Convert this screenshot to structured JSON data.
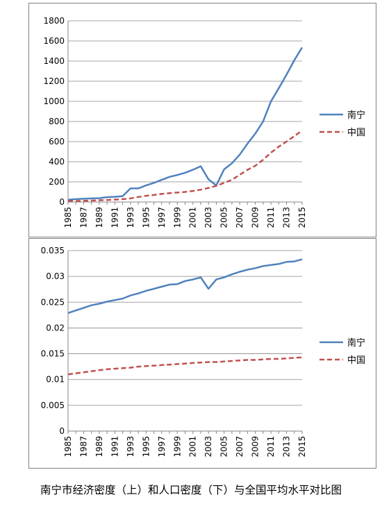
{
  "chart_data": [
    {
      "type": "line",
      "x": [
        1985,
        1986,
        1987,
        1988,
        1989,
        1990,
        1991,
        1992,
        1993,
        1994,
        1995,
        1996,
        1997,
        1998,
        1999,
        2000,
        2001,
        2002,
        2003,
        2004,
        2005,
        2006,
        2007,
        2008,
        2009,
        2010,
        2011,
        2012,
        2013,
        2014,
        2015
      ],
      "x_tick_labels": [
        "1985",
        "1987",
        "1989",
        "1991",
        "1993",
        "1995",
        "1997",
        "1999",
        "2001",
        "2003",
        "2005",
        "2007",
        "2009",
        "2011",
        "2013",
        "2015"
      ],
      "y_tick_labels": [
        "0",
        "200",
        "400",
        "600",
        "800",
        "1000",
        "1200",
        "1400",
        "1600",
        "1800"
      ],
      "ylim": [
        0,
        1800
      ],
      "grid": "horizontal",
      "legend_position": "right",
      "series": [
        {
          "name": "南宁",
          "color": "#4f81bd",
          "style": "solid",
          "values": [
            22,
            28,
            33,
            35,
            38,
            48,
            52,
            58,
            135,
            135,
            165,
            190,
            220,
            250,
            268,
            290,
            320,
            355,
            225,
            165,
            325,
            385,
            470,
            580,
            680,
            800,
            1000,
            1130,
            1265,
            1410,
            1535
          ]
        },
        {
          "name": "中国",
          "color": "#c0504d",
          "style": "dashed",
          "values": [
            8,
            10,
            12,
            14,
            17,
            20,
            24,
            28,
            36,
            50,
            62,
            70,
            80,
            88,
            94,
            100,
            110,
            122,
            140,
            160,
            190,
            220,
            270,
            320,
            360,
            420,
            490,
            550,
            600,
            655,
            710
          ]
        }
      ]
    },
    {
      "type": "line",
      "x": [
        1985,
        1986,
        1987,
        1988,
        1989,
        1990,
        1991,
        1992,
        1993,
        1994,
        1995,
        1996,
        1997,
        1998,
        1999,
        2000,
        2001,
        2002,
        2003,
        2004,
        2005,
        2006,
        2007,
        2008,
        2009,
        2010,
        2011,
        2012,
        2013,
        2014,
        2015
      ],
      "x_tick_labels": [
        "1985",
        "1987",
        "1989",
        "1991",
        "1993",
        "1995",
        "1997",
        "1999",
        "2001",
        "2003",
        "2005",
        "2007",
        "2009",
        "2011",
        "2013",
        "2015"
      ],
      "y_tick_labels": [
        "0",
        "0.005",
        "0.01",
        "0.015",
        "0.02",
        "0.025",
        "0.03",
        "0.035"
      ],
      "ylim": [
        0,
        0.035
      ],
      "grid": "horizontal",
      "legend_position": "right",
      "series": [
        {
          "name": "南宁",
          "color": "#4f81bd",
          "style": "solid",
          "values": [
            0.0229,
            0.0234,
            0.0239,
            0.0244,
            0.0247,
            0.0251,
            0.0254,
            0.0257,
            0.0263,
            0.0267,
            0.0272,
            0.0276,
            0.028,
            0.0284,
            0.0285,
            0.0291,
            0.0294,
            0.0298,
            0.0276,
            0.0294,
            0.0298,
            0.0304,
            0.0309,
            0.0313,
            0.0316,
            0.032,
            0.0322,
            0.0324,
            0.0328,
            0.0329,
            0.0333
          ]
        },
        {
          "name": "中国",
          "color": "#c0504d",
          "style": "dashed",
          "values": [
            0.011,
            0.0112,
            0.0114,
            0.0116,
            0.0118,
            0.012,
            0.0121,
            0.0122,
            0.0123,
            0.0125,
            0.0126,
            0.0127,
            0.0128,
            0.0129,
            0.013,
            0.0131,
            0.0132,
            0.0133,
            0.0134,
            0.0134,
            0.0135,
            0.0136,
            0.0137,
            0.0138,
            0.0138,
            0.0139,
            0.014,
            0.014,
            0.0141,
            0.0142,
            0.0143
          ]
        }
      ]
    }
  ],
  "caption": "南宁市经济密度（上）和人口密度（下）与全国平均水平对比图"
}
